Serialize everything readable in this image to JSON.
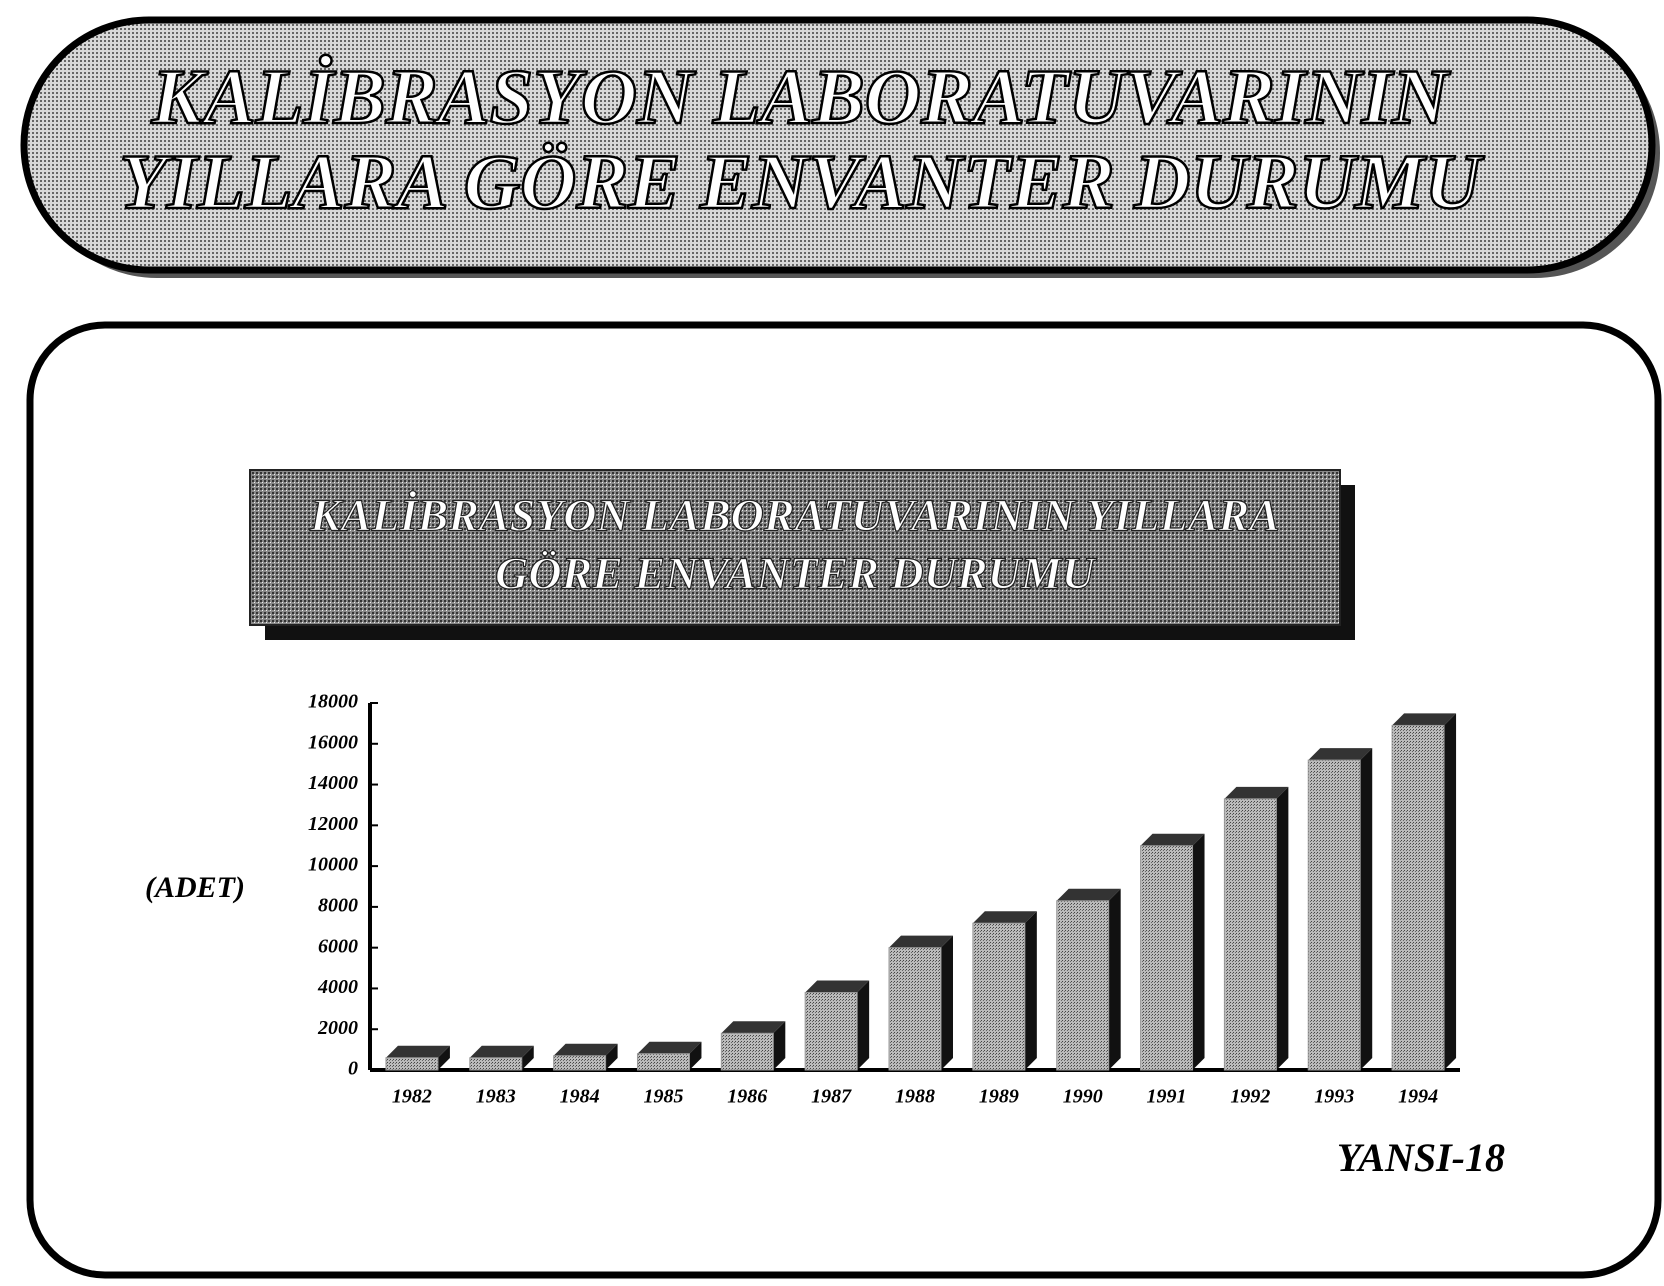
{
  "header": {
    "lines": [
      "KALİBRASYON LABORATUVARININ",
      "YILLARA GÖRE ENVANTER DURUMU"
    ]
  },
  "chart_data": {
    "type": "bar",
    "title_lines": [
      "KALİBRASYON LABORATUVARININ YILLARA",
      "GÖRE ENVANTER DURUMU"
    ],
    "y_label": "(ADET)",
    "categories": [
      "1982",
      "1983",
      "1984",
      "1985",
      "1986",
      "1987",
      "1988",
      "1989",
      "1990",
      "1991",
      "1992",
      "1993",
      "1994"
    ],
    "values": [
      600,
      600,
      700,
      800,
      1800,
      3800,
      6000,
      7200,
      8300,
      11000,
      13300,
      15200,
      16900
    ],
    "color": "#9a9a9a",
    "ylim": [
      0,
      18000
    ],
    "yticks": [
      0,
      2000,
      4000,
      6000,
      8000,
      10000,
      12000,
      14000,
      16000,
      18000
    ]
  },
  "footer": "YANSI-18"
}
